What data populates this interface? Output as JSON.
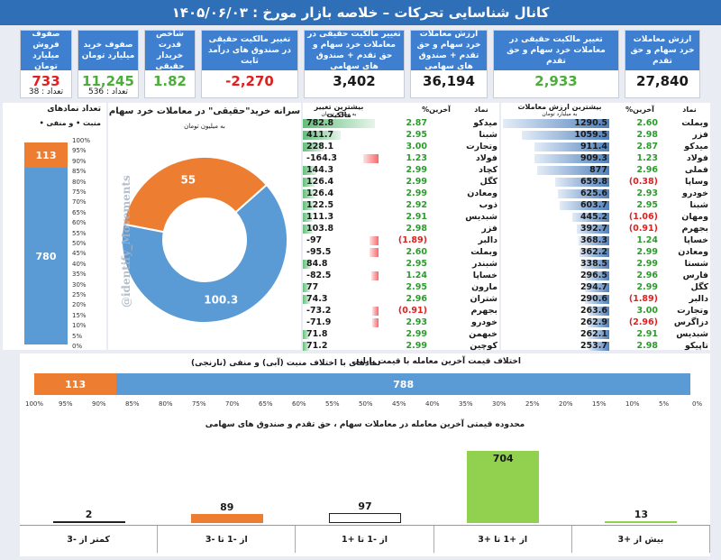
{
  "header": {
    "title": "کانال شناسایی تحرکات   –   خلاصه بازار مورخ : ۱۴۰۵/۰۶/۰۳"
  },
  "kpis": [
    {
      "label": "صفوف فروش میلیارد تومان",
      "value": "733",
      "count": "تعداد : 38",
      "color": "#e02020"
    },
    {
      "label": "صفوف خرید میلیارد تومان",
      "value": "11,245",
      "count": "تعداد : 536",
      "color": "#4cae3a"
    },
    {
      "label": "شاخص قدرت خریدار حقیقی",
      "value": "1.82",
      "count": "",
      "color": "#4cae3a"
    },
    {
      "label": "تغییر مالکیت حقیقی در صندوق های درآمد ثابت",
      "value": "-2,270",
      "count": "",
      "color": "#e02020"
    },
    {
      "label": "تغییر مالکیت حقیقی در معاملات خرد سهام و حق تقدم + صندوق های سهامی",
      "value": "3,402",
      "count": "",
      "color": "#1a1a1a"
    },
    {
      "label": "ارزش معاملات خرد سهام و حق تقدم + صندوق های سهامی",
      "value": "36,194",
      "count": "",
      "color": "#1a1a1a"
    },
    {
      "label": "تغییر مالکیت حقیقی در معاملات خرد سهام و حق تقدم",
      "value": "2,933",
      "count": "",
      "color": "#4cae3a"
    },
    {
      "label": "ارزش معاملات خرد سهام و حق تقدم",
      "value": "27,840",
      "count": "",
      "color": "#1a1a1a"
    }
  ],
  "left_stack": {
    "title": "تعداد نمادهای",
    "legend": "منبت • و منفی •",
    "ticks": [
      "100%",
      "95%",
      "90%",
      "85%",
      "80%",
      "75%",
      "70%",
      "65%",
      "60%",
      "55%",
      "50%",
      "45%",
      "40%",
      "35%",
      "30%",
      "25%",
      "20%",
      "15%",
      "10%",
      "5%",
      "0%"
    ],
    "neg": 113,
    "pos": 780,
    "neg_color": "#ed7d31",
    "pos_color": "#5b9bd5"
  },
  "donut": {
    "title": "سرانه خرید\"حقیقی\" در معاملات خرد سهام",
    "subtitle": "به میلیون تومان",
    "buy": 100.3,
    "sell": 55.0,
    "buy_color": "#5b9bd5",
    "sell_color": "#ed7d31"
  },
  "watermark": "@identify_Movements",
  "ownership_table": {
    "col_value": "بیشترین تغییر مالکیت",
    "col_value_sub": "به میلیارد تومان",
    "col_pct": "%آخرین",
    "col_sym": "نماد",
    "rows": [
      {
        "value": 782.8,
        "pct": "2.87",
        "sym": "میدکو"
      },
      {
        "value": 411.7,
        "pct": "2.95",
        "sym": "شبنا"
      },
      {
        "value": 228.1,
        "pct": "3.00",
        "sym": "وتجارت"
      },
      {
        "value": -164.3,
        "pct": "1.23",
        "sym": "فولاد"
      },
      {
        "value": 144.3,
        "pct": "2.99",
        "sym": "کچاد"
      },
      {
        "value": 126.4,
        "pct": "2.99",
        "sym": "کگل"
      },
      {
        "value": 126.4,
        "pct": "2.99",
        "sym": "ومعادن"
      },
      {
        "value": 122.5,
        "pct": "2.92",
        "sym": "ذوب"
      },
      {
        "value": 111.3,
        "pct": "2.91",
        "sym": "شبدیس"
      },
      {
        "value": 103.8,
        "pct": "2.98",
        "sym": "فزر"
      },
      {
        "value": -97.0,
        "pct": "(1.89)",
        "sym": "دالبر"
      },
      {
        "value": -95.5,
        "pct": "2.60",
        "sym": "وبملت"
      },
      {
        "value": 84.8,
        "pct": "2.95",
        "sym": "شبندر"
      },
      {
        "value": -82.5,
        "pct": "1.24",
        "sym": "خساپا"
      },
      {
        "value": 77.0,
        "pct": "2.95",
        "sym": "مارون"
      },
      {
        "value": 74.3,
        "pct": "2.96",
        "sym": "شتران"
      },
      {
        "value": -73.2,
        "pct": "(0.91)",
        "sym": "بجهرم"
      },
      {
        "value": -71.9,
        "pct": "2.93",
        "sym": "خودرو"
      },
      {
        "value": 71.8,
        "pct": "2.99",
        "sym": "خبهمن"
      },
      {
        "value": 71.2,
        "pct": "2.99",
        "sym": "کوچین"
      }
    ]
  },
  "trade_table": {
    "col_value": "بیشترین ارزش معاملات",
    "col_value_sub": "به میلیارد تومان",
    "col_pct": "%آخرین",
    "col_sym": "نماد",
    "rows": [
      {
        "value": 1290.5,
        "pct": "2.60",
        "sym": "وبملت"
      },
      {
        "value": 1059.5,
        "pct": "2.98",
        "sym": "فزر"
      },
      {
        "value": 911.4,
        "pct": "2.87",
        "sym": "میدکو"
      },
      {
        "value": 909.3,
        "pct": "1.23",
        "sym": "فولاد"
      },
      {
        "value": 877.0,
        "pct": "2.96",
        "sym": "فملی"
      },
      {
        "value": 659.8,
        "pct": "(0.38)",
        "sym": "وساپا"
      },
      {
        "value": 625.6,
        "pct": "2.93",
        "sym": "خودرو"
      },
      {
        "value": 603.7,
        "pct": "2.95",
        "sym": "شبنا"
      },
      {
        "value": 445.2,
        "pct": "(1.06)",
        "sym": "ومهان"
      },
      {
        "value": 392.7,
        "pct": "(0.91)",
        "sym": "بجهرم"
      },
      {
        "value": 368.3,
        "pct": "1.24",
        "sym": "خساپا"
      },
      {
        "value": 362.2,
        "pct": "2.99",
        "sym": "ومعادن"
      },
      {
        "value": 338.5,
        "pct": "2.99",
        "sym": "شستا"
      },
      {
        "value": 296.5,
        "pct": "2.96",
        "sym": "فارس"
      },
      {
        "value": 294.7,
        "pct": "2.99",
        "sym": "کگل"
      },
      {
        "value": 290.6,
        "pct": "(1.89)",
        "sym": "دالبر"
      },
      {
        "value": 263.6,
        "pct": "3.00",
        "sym": "وتجارت"
      },
      {
        "value": 262.9,
        "pct": "(2.96)",
        "sym": "دزاگرس"
      },
      {
        "value": 262.1,
        "pct": "2.91",
        "sym": "شبدیس"
      },
      {
        "value": 253.7,
        "pct": "2.98",
        "sym": "تاپیکو"
      }
    ]
  },
  "hbar": {
    "title1": "اختلاف قیمت آخرین معامله با قیمت پایانی",
    "title2": "نمادهای با اختلاف منبت (آبی) و منفی (نارنجی)",
    "neg": 113,
    "pos": 788,
    "ticks": [
      "100%",
      "95%",
      "90%",
      "85%",
      "80%",
      "75%",
      "70%",
      "65%",
      "60%",
      "55%",
      "50%",
      "45%",
      "40%",
      "35%",
      "30%",
      "25%",
      "20%",
      "15%",
      "10%",
      "5%",
      "0%"
    ]
  },
  "range_chart": {
    "title": "محدوده قیمتی آخرین معامله در  معاملات سهام ، حق تقدم و صندوق های سهامی",
    "categories": [
      "کمتر از -3",
      "از -1 تا -3",
      "از -1 تا +1",
      "از +1 تا +3",
      "بیش از +3"
    ],
    "values": [
      2,
      89,
      97,
      704,
      13
    ],
    "colors": [
      "#ffffff",
      "#ed7d31",
      "#ffffff",
      "#92d050",
      "#92d050"
    ]
  }
}
